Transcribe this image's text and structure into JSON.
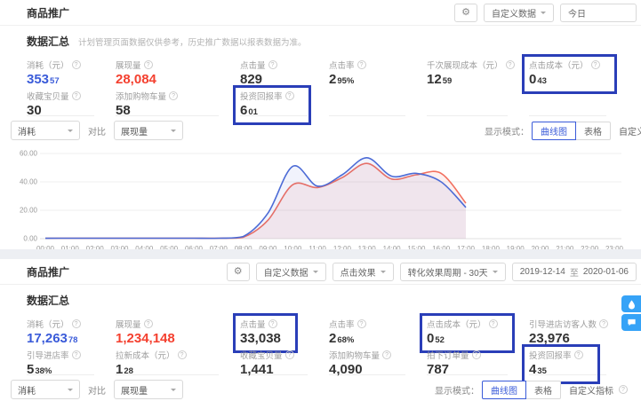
{
  "colors": {
    "accent_blue": "#3a5bd9",
    "alert_red": "#f4402f",
    "highlight_box": "#2a3eb8",
    "line_blue": "#4c6bd6",
    "line_red": "#f2705f",
    "widget_blue": "#36a3f7"
  },
  "panel1": {
    "title": "商品推广",
    "toolbar": {
      "customize": "自定义数据",
      "date": "今日"
    },
    "summary_title": "数据汇总",
    "summary_note": "计划管理页面数据仅供参考，历史推广数据以报表数据为准。",
    "metrics": [
      [
        {
          "label": "消耗（元）",
          "v": "353",
          "d": "57",
          "color": "c-blue"
        },
        {
          "label": "展现量",
          "v": "28,084",
          "color": "c-red"
        },
        {
          "label": "点击量",
          "v": "829"
        },
        {
          "label": "点击率",
          "v": "2",
          "d": "95%"
        },
        {
          "label": "千次展现成本（元）",
          "v": "12",
          "d": "59"
        },
        {
          "label": "点击成本（元）",
          "v": "0",
          "d": "43",
          "highlight": true
        }
      ],
      [
        {
          "label": "收藏宝贝量",
          "v": "30"
        },
        {
          "label": "添加购物车量",
          "v": "58"
        },
        {
          "label": "投资回报率",
          "v": "6",
          "d": "01",
          "highlight": true
        },
        null,
        null,
        null
      ]
    ],
    "controls": {
      "metric": "消耗",
      "vs": "对比",
      "compare": "展现量"
    },
    "mode": {
      "label": "显示模式：",
      "curve": "曲线图",
      "table": "表格",
      "custom": "自定义指标"
    }
  },
  "chart_data": {
    "type": "area",
    "title": "",
    "xlabel": "",
    "ylabel": "",
    "x": [
      "00:00",
      "01:00",
      "02:00",
      "03:00",
      "04:00",
      "05:00",
      "06:00",
      "07:00",
      "08:00",
      "09:00",
      "10:00",
      "11:00",
      "12:00",
      "13:00",
      "14:00",
      "15:00",
      "16:00",
      "17:00",
      "18:00",
      "19:00",
      "20:00",
      "21:00",
      "22:00",
      "23:00"
    ],
    "ylim": [
      0,
      60
    ],
    "yticks": [
      0,
      20,
      40,
      60
    ],
    "ytick_labels": [
      "0.00",
      "20.00",
      "40.00",
      "60.00"
    ],
    "grid": true,
    "legend_position": "none",
    "series": [
      {
        "name": "消耗",
        "color": "#4c6bd6",
        "fill": "rgba(76,107,214,0.08)",
        "values": [
          0.3,
          0.3,
          0.3,
          0.3,
          0.3,
          0.3,
          0.3,
          0.3,
          1.5,
          18,
          51,
          37,
          45,
          57,
          44,
          46,
          40,
          22,
          null,
          null,
          null,
          null,
          null,
          null
        ]
      },
      {
        "name": "展现量",
        "color": "#f2705f",
        "fill": "rgba(242,112,95,0.10)",
        "values": [
          0.3,
          0.3,
          0.3,
          0.3,
          0.3,
          0.3,
          0.3,
          0.3,
          1.0,
          13,
          38,
          36,
          43,
          53,
          42,
          45,
          46,
          25,
          null,
          null,
          null,
          null,
          null,
          null
        ]
      }
    ]
  },
  "panel2": {
    "title": "商品推广",
    "toolbar": {
      "customize": "自定义数据",
      "click_effect": "点击效果",
      "conversion_cycle": "转化效果周期 - 30天",
      "date_start": "2019-12-14",
      "date_sep": "至",
      "date_end": "2020-01-06"
    },
    "summary_title": "数据汇总",
    "metrics": [
      [
        {
          "label": "消耗（元）",
          "v": "17,263",
          "d": "78",
          "color": "c-blue"
        },
        {
          "label": "展现量",
          "v": "1,234,148",
          "color": "c-red"
        },
        {
          "label": "点击量",
          "v": "33,038",
          "highlight": true
        },
        {
          "label": "点击率",
          "v": "2",
          "d": "68%"
        },
        {
          "label": "点击成本（元）",
          "v": "0",
          "d": "52",
          "highlight": true
        },
        {
          "label": "引导进店访客人数",
          "v": "23,976"
        }
      ],
      [
        {
          "label": "引导进店率",
          "v": "5",
          "d": "38%"
        },
        {
          "label": "拉新成本（元）",
          "v": "1",
          "d": "28"
        },
        {
          "label": "收藏宝贝量",
          "v": "1,441"
        },
        {
          "label": "添加购物车量",
          "v": "4,090"
        },
        {
          "label": "拍下订单量",
          "v": "787"
        },
        {
          "label": "投资回报率",
          "v": "4",
          "d": "35",
          "highlight": true
        }
      ]
    ],
    "controls": {
      "metric": "消耗",
      "vs": "对比",
      "compare": "展现量"
    },
    "mode": {
      "label": "显示模式：",
      "curve": "曲线图",
      "table": "表格",
      "custom": "自定义指标"
    }
  }
}
